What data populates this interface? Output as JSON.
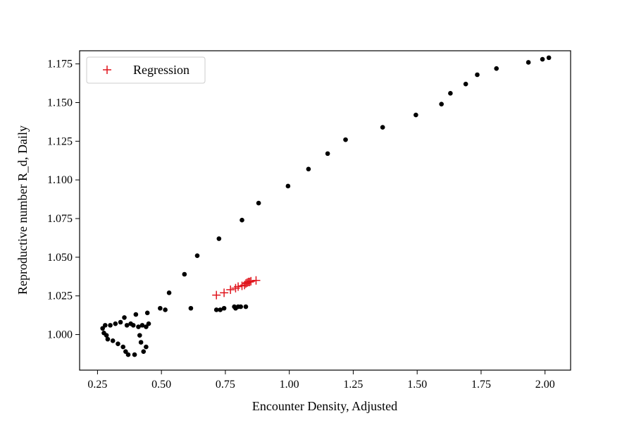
{
  "chart_data": {
    "type": "scatter",
    "xlabel": "Encounter Density, Adjusted",
    "ylabel": "Reproductive number R_d, Daily",
    "xlim": [
      0.18,
      2.1
    ],
    "ylim": [
      0.977,
      1.1835
    ],
    "x_ticks": [
      0.25,
      0.5,
      0.75,
      1.0,
      1.25,
      1.5,
      1.75,
      2.0
    ],
    "x_tick_labels": [
      "0.25",
      "0.50",
      "0.75",
      "1.00",
      "1.25",
      "1.50",
      "1.75",
      "2.00"
    ],
    "y_ticks": [
      1.0,
      1.025,
      1.05,
      1.075,
      1.1,
      1.125,
      1.15,
      1.175
    ],
    "y_tick_labels": [
      "1.000",
      "1.025",
      "1.050",
      "1.075",
      "1.100",
      "1.125",
      "1.150",
      "1.175"
    ],
    "grid": false,
    "legend": {
      "placement": "top-left",
      "entries": [
        "Regression"
      ]
    },
    "series": [
      {
        "marker": "dot",
        "color": "#000000",
        "points": [
          [
            0.27,
            1.004
          ],
          [
            0.275,
            1.001
          ],
          [
            0.28,
            1.006
          ],
          [
            0.285,
            0.9995
          ],
          [
            0.29,
            0.997
          ],
          [
            0.3,
            1.006
          ],
          [
            0.31,
            0.996
          ],
          [
            0.32,
            1.007
          ],
          [
            0.33,
            0.994
          ],
          [
            0.34,
            1.008
          ],
          [
            0.35,
            0.992
          ],
          [
            0.355,
            1.011
          ],
          [
            0.36,
            0.989
          ],
          [
            0.365,
            1.006
          ],
          [
            0.37,
            0.987
          ],
          [
            0.38,
            1.007
          ],
          [
            0.39,
            1.006
          ],
          [
            0.395,
            0.987
          ],
          [
            0.4,
            1.013
          ],
          [
            0.41,
            1.005
          ],
          [
            0.415,
            0.9995
          ],
          [
            0.42,
            0.995
          ],
          [
            0.425,
            1.006
          ],
          [
            0.43,
            0.989
          ],
          [
            0.44,
            1.005
          ],
          [
            0.44,
            0.992
          ],
          [
            0.445,
            1.014
          ],
          [
            0.45,
            1.007
          ],
          [
            0.495,
            1.017
          ],
          [
            0.515,
            1.016
          ],
          [
            0.53,
            1.027
          ],
          [
            0.59,
            1.039
          ],
          [
            0.615,
            1.017
          ],
          [
            0.64,
            1.051
          ],
          [
            0.715,
            1.016
          ],
          [
            0.725,
            1.062
          ],
          [
            0.73,
            1.016
          ],
          [
            0.745,
            1.017
          ],
          [
            0.785,
            1.018
          ],
          [
            0.79,
            1.017
          ],
          [
            0.8,
            1.018
          ],
          [
            0.815,
            1.074
          ],
          [
            0.81,
            1.018
          ],
          [
            0.83,
            1.018
          ],
          [
            0.88,
            1.085
          ],
          [
            0.995,
            1.096
          ],
          [
            1.075,
            1.107
          ],
          [
            1.15,
            1.117
          ],
          [
            1.22,
            1.126
          ],
          [
            1.365,
            1.134
          ],
          [
            1.495,
            1.142
          ],
          [
            1.595,
            1.149
          ],
          [
            1.63,
            1.156
          ],
          [
            1.69,
            1.162
          ],
          [
            1.735,
            1.168
          ],
          [
            1.81,
            1.172
          ],
          [
            1.935,
            1.176
          ],
          [
            1.99,
            1.178
          ],
          [
            2.015,
            1.179
          ]
        ]
      },
      {
        "name": "Regression",
        "marker": "plus",
        "color": "#e0141c",
        "points": [
          [
            0.715,
            1.0255
          ],
          [
            0.745,
            1.027
          ],
          [
            0.77,
            1.029
          ],
          [
            0.79,
            1.03
          ],
          [
            0.8,
            1.031
          ],
          [
            0.815,
            1.0315
          ],
          [
            0.825,
            1.032
          ],
          [
            0.83,
            1.033
          ],
          [
            0.835,
            1.0335
          ],
          [
            0.84,
            1.034
          ],
          [
            0.845,
            1.034
          ],
          [
            0.85,
            1.0345
          ],
          [
            0.87,
            1.035
          ]
        ]
      }
    ]
  }
}
